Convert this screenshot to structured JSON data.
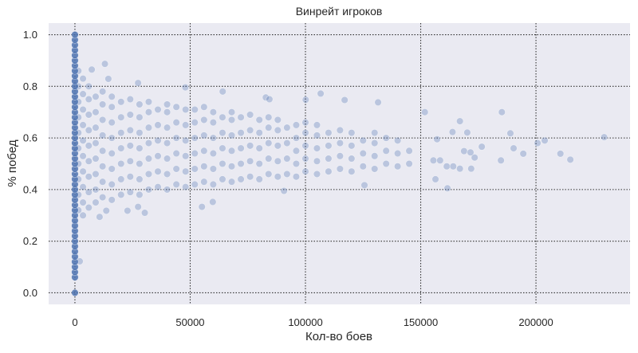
{
  "chart_data": {
    "type": "scatter",
    "title": "Винрейт игроков",
    "xlabel": "Кол-во боев",
    "ylabel": "% побед",
    "xlim": [
      -11400,
      240800
    ],
    "ylim": [
      -0.045,
      1.045
    ],
    "xticks": [
      0,
      50000,
      100000,
      150000,
      200000
    ],
    "xtick_labels": [
      "0",
      "50000",
      "100000",
      "150000",
      "200000"
    ],
    "yticks": [
      0.0,
      0.2,
      0.4,
      0.6,
      0.8,
      1.0
    ],
    "ytick_labels": [
      "0.0",
      "0.2",
      "0.4",
      "0.6",
      "0.8",
      "1.0"
    ],
    "grid": true,
    "grid_style": "dotted",
    "background_color": "#eaeaf2",
    "point_color": "#4c72b0",
    "point_alpha": 0.3,
    "zero_battles_y": [
      0,
      0.06,
      0.08,
      0.1,
      0.12,
      0.14,
      0.16,
      0.18,
      0.2,
      0.22,
      0.24,
      0.26,
      0.28,
      0.3,
      0.32,
      0.34,
      0.36,
      0.38,
      0.4,
      0.42,
      0.44,
      0.46,
      0.48,
      0.5,
      0.52,
      0.54,
      0.56,
      0.58,
      0.6,
      0.62,
      0.64,
      0.66,
      0.68,
      0.7,
      0.72,
      0.74,
      0.76,
      0.78,
      0.8,
      0.82,
      0.84,
      0.86,
      0.88,
      0.9,
      0.92,
      0.94,
      0.96,
      0.98,
      1.0
    ],
    "cloud": [
      {
        "x": 1500,
        "y": [
          0.32,
          0.38,
          0.44,
          0.5,
          0.56,
          0.62,
          0.68,
          0.74,
          0.8,
          0.86
        ]
      },
      {
        "x": 3500,
        "y": [
          0.3,
          0.35,
          0.41,
          0.47,
          0.53,
          0.59,
          0.65,
          0.71,
          0.77,
          0.83
        ]
      },
      {
        "x": 6000,
        "y": [
          0.33,
          0.39,
          0.45,
          0.51,
          0.57,
          0.63,
          0.69,
          0.75,
          0.8
        ]
      },
      {
        "x": 9000,
        "y": [
          0.35,
          0.4,
          0.46,
          0.52,
          0.58,
          0.64,
          0.7,
          0.76
        ]
      },
      {
        "x": 12000,
        "y": [
          0.37,
          0.43,
          0.49,
          0.55,
          0.61,
          0.67,
          0.73,
          0.78
        ]
      },
      {
        "x": 16000,
        "y": [
          0.36,
          0.42,
          0.48,
          0.54,
          0.6,
          0.66,
          0.72,
          0.76
        ]
      },
      {
        "x": 20000,
        "y": [
          0.38,
          0.44,
          0.5,
          0.56,
          0.62,
          0.68,
          0.74
        ]
      },
      {
        "x": 24000,
        "y": [
          0.39,
          0.45,
          0.51,
          0.57,
          0.63,
          0.69,
          0.75
        ]
      },
      {
        "x": 28000,
        "y": [
          0.38,
          0.44,
          0.5,
          0.56,
          0.62,
          0.68,
          0.73
        ]
      },
      {
        "x": 32000,
        "y": [
          0.4,
          0.46,
          0.52,
          0.58,
          0.64,
          0.7,
          0.74
        ]
      },
      {
        "x": 36000,
        "y": [
          0.41,
          0.47,
          0.53,
          0.59,
          0.65,
          0.71
        ]
      },
      {
        "x": 40000,
        "y": [
          0.4,
          0.46,
          0.52,
          0.58,
          0.64,
          0.7,
          0.73
        ]
      },
      {
        "x": 44000,
        "y": [
          0.42,
          0.48,
          0.54,
          0.6,
          0.66,
          0.72
        ]
      },
      {
        "x": 48000,
        "y": [
          0.41,
          0.47,
          0.53,
          0.59,
          0.65,
          0.71
        ]
      },
      {
        "x": 52000,
        "y": [
          0.42,
          0.48,
          0.54,
          0.6,
          0.66,
          0.71
        ]
      },
      {
        "x": 56000,
        "y": [
          0.43,
          0.49,
          0.55,
          0.61,
          0.67,
          0.72
        ]
      },
      {
        "x": 60000,
        "y": [
          0.42,
          0.48,
          0.54,
          0.6,
          0.66,
          0.7
        ]
      },
      {
        "x": 64000,
        "y": [
          0.44,
          0.5,
          0.56,
          0.62,
          0.68
        ]
      },
      {
        "x": 68000,
        "y": [
          0.43,
          0.49,
          0.55,
          0.61,
          0.67,
          0.7
        ]
      },
      {
        "x": 72000,
        "y": [
          0.44,
          0.5,
          0.56,
          0.62,
          0.68
        ]
      },
      {
        "x": 76000,
        "y": [
          0.45,
          0.51,
          0.57,
          0.63,
          0.69
        ]
      },
      {
        "x": 80000,
        "y": [
          0.44,
          0.5,
          0.56,
          0.62,
          0.67
        ]
      },
      {
        "x": 84000,
        "y": [
          0.46,
          0.52,
          0.58,
          0.64,
          0.68
        ]
      },
      {
        "x": 88000,
        "y": [
          0.45,
          0.51,
          0.57,
          0.63,
          0.67
        ]
      },
      {
        "x": 92000,
        "y": [
          0.46,
          0.52,
          0.58,
          0.64
        ]
      },
      {
        "x": 96000,
        "y": [
          0.45,
          0.5,
          0.55,
          0.6,
          0.65
        ]
      },
      {
        "x": 100000,
        "y": [
          0.47,
          0.52,
          0.57,
          0.62,
          0.66
        ]
      },
      {
        "x": 105000,
        "y": [
          0.46,
          0.51,
          0.56,
          0.61,
          0.65
        ]
      },
      {
        "x": 110000,
        "y": [
          0.47,
          0.52,
          0.57,
          0.62
        ]
      },
      {
        "x": 115000,
        "y": [
          0.48,
          0.53,
          0.58,
          0.63
        ]
      },
      {
        "x": 120000,
        "y": [
          0.47,
          0.52,
          0.57,
          0.62
        ]
      },
      {
        "x": 125000,
        "y": [
          0.49,
          0.54,
          0.59
        ]
      },
      {
        "x": 130000,
        "y": [
          0.48,
          0.53,
          0.58,
          0.62
        ]
      },
      {
        "x": 135000,
        "y": [
          0.5,
          0.55,
          0.6
        ]
      },
      {
        "x": 140000,
        "y": [
          0.49,
          0.54,
          0.59
        ]
      },
      {
        "x": 145000,
        "y": [
          0.5,
          0.55
        ]
      }
    ],
    "outliers": [
      [
        229600,
        0.603
      ],
      [
        185200,
        0.7
      ],
      [
        188900,
        0.618
      ],
      [
        200700,
        0.58
      ],
      [
        203800,
        0.59
      ],
      [
        210600,
        0.539
      ],
      [
        214900,
        0.516
      ],
      [
        190300,
        0.56
      ],
      [
        194500,
        0.539
      ],
      [
        184800,
        0.513
      ],
      [
        167000,
        0.665
      ],
      [
        161600,
        0.405
      ],
      [
        176500,
        0.566
      ],
      [
        173400,
        0.524
      ],
      [
        171900,
        0.481
      ],
      [
        170200,
        0.621
      ],
      [
        163800,
        0.623
      ],
      [
        151800,
        0.7
      ],
      [
        156400,
        0.44
      ],
      [
        157100,
        0.595
      ],
      [
        168800,
        0.549
      ],
      [
        171600,
        0.544
      ],
      [
        167000,
        0.481
      ],
      [
        161300,
        0.49
      ],
      [
        164100,
        0.49
      ],
      [
        155500,
        0.513
      ],
      [
        158400,
        0.513
      ],
      [
        13000,
        0.887
      ],
      [
        7300,
        0.865
      ],
      [
        14500,
        0.829
      ],
      [
        27400,
        0.813
      ],
      [
        47900,
        0.796
      ],
      [
        64100,
        0.78
      ],
      [
        82800,
        0.757
      ],
      [
        100100,
        0.748
      ],
      [
        30300,
        0.31
      ],
      [
        22800,
        0.318
      ],
      [
        10700,
        0.294
      ],
      [
        55100,
        0.333
      ],
      [
        59800,
        0.352
      ],
      [
        2100,
        0.122
      ],
      [
        13600,
        0.318
      ],
      [
        27400,
        0.333
      ],
      [
        117000,
        0.747
      ],
      [
        84400,
        0.75
      ],
      [
        131500,
        0.738
      ],
      [
        106600,
        0.772
      ],
      [
        90700,
        0.395
      ],
      [
        125600,
        0.417
      ]
    ]
  }
}
